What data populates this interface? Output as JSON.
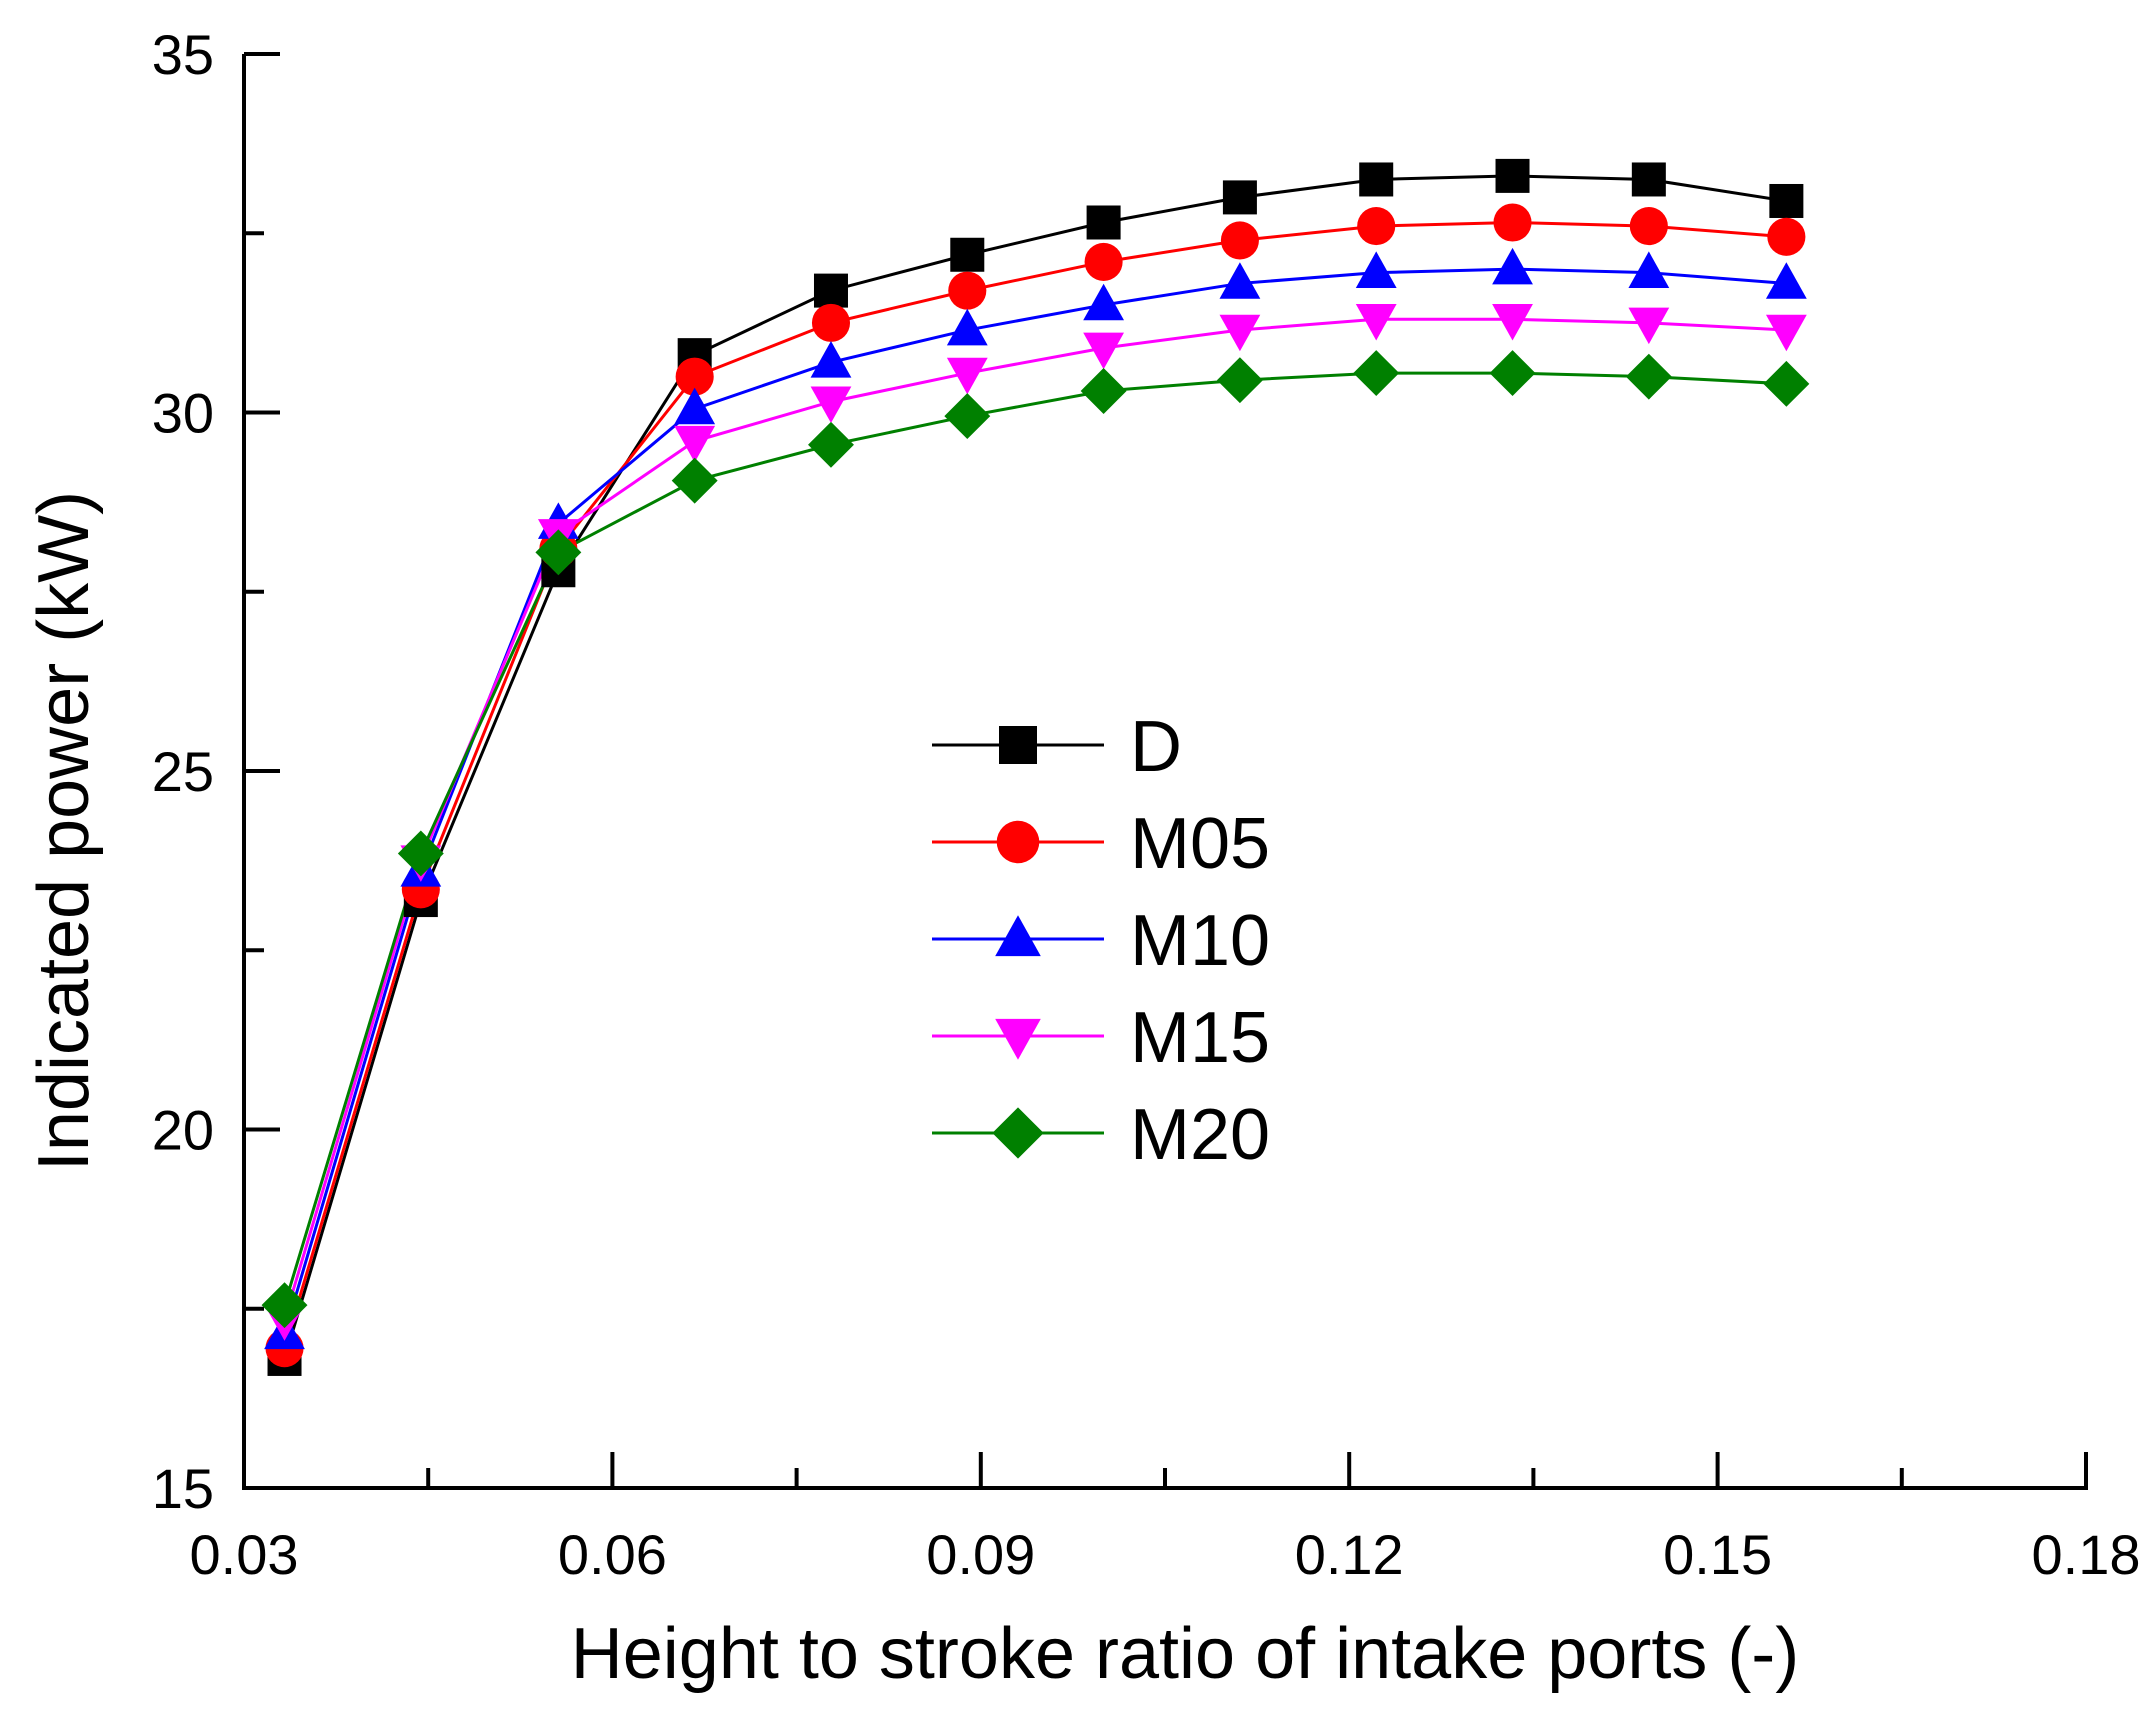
{
  "chart_data": {
    "type": "line",
    "title": "",
    "xlabel": "Height to stroke ratio of intake ports (-)",
    "ylabel": "Indicated power (kW)",
    "xlim": [
      0.03,
      0.18
    ],
    "ylim": [
      15,
      35
    ],
    "xticks": [
      0.03,
      0.06,
      0.09,
      0.12,
      0.15,
      0.18
    ],
    "xtick_labels": [
      "0.03",
      "0.06",
      "0.09",
      "0.12",
      "0.15",
      "0.18"
    ],
    "yticks": [
      15,
      20,
      25,
      30,
      35
    ],
    "ytick_labels": [
      "15",
      "20",
      "25",
      "30",
      "35"
    ],
    "grid": false,
    "legend_position": "center",
    "x": [
      0.0333,
      0.0444,
      0.0556,
      0.0667,
      0.0778,
      0.0889,
      0.1,
      0.1111,
      0.1222,
      0.1333,
      0.1444,
      0.1556
    ],
    "series": [
      {
        "name": "D",
        "color": "#000000",
        "marker": "square",
        "values": [
          16.8,
          23.2,
          27.8,
          30.8,
          31.7,
          32.2,
          32.65,
          33.0,
          33.25,
          33.3,
          33.25,
          32.95
        ]
      },
      {
        "name": "M05",
        "color": "#ff0000",
        "marker": "circle",
        "values": [
          16.95,
          23.35,
          28.1,
          30.5,
          31.25,
          31.7,
          32.1,
          32.4,
          32.6,
          32.65,
          32.6,
          32.45
        ]
      },
      {
        "name": "M10",
        "color": "#0000ff",
        "marker": "triangle-up",
        "values": [
          17.15,
          23.6,
          28.45,
          30.05,
          30.7,
          31.15,
          31.5,
          31.8,
          31.95,
          32.0,
          31.95,
          31.8
        ]
      },
      {
        "name": "M15",
        "color": "#ff00ff",
        "marker": "triangle-down",
        "values": [
          17.35,
          23.75,
          28.3,
          29.6,
          30.15,
          30.55,
          30.9,
          31.15,
          31.3,
          31.3,
          31.25,
          31.15
        ]
      },
      {
        "name": "M20",
        "color": "#008000",
        "marker": "diamond",
        "values": [
          17.55,
          23.85,
          28.05,
          29.05,
          29.55,
          29.95,
          30.3,
          30.45,
          30.55,
          30.55,
          30.5,
          30.4
        ]
      }
    ]
  }
}
